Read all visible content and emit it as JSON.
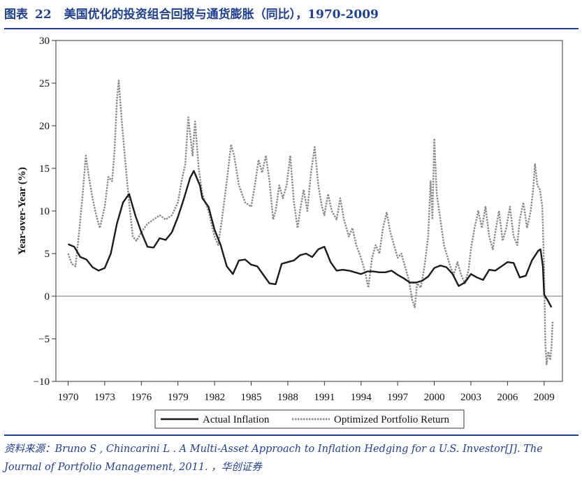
{
  "header": {
    "label": "图表",
    "number": "22",
    "title": "美国优化的投资组合回报与通货膨胀（同比），1970-2009"
  },
  "source": {
    "text": "资料来源：Bruno S , Chincarini L . A Multi-Asset Approach to Inflation Hedging for a U.S. Investor[J]. The Journal of Portfolio Management, 2011. ，华创证券"
  },
  "colors": {
    "title": "#1f3f8f",
    "inflation": "#1a1a1a",
    "portfolio": "#8a8a8a"
  },
  "chart_data": {
    "type": "line",
    "title": "",
    "xlabel": "",
    "ylabel": "Year-over-Year (%)",
    "xlim": [
      1969.0,
      2010.5
    ],
    "ylim": [
      -10,
      30
    ],
    "x_ticks": [
      1970,
      1973,
      1976,
      1979,
      1982,
      1985,
      1988,
      1991,
      1994,
      1997,
      2000,
      2003,
      2006,
      2009
    ],
    "x_tick_labels": [
      "1970",
      "1973",
      "1976",
      "1979",
      "1982",
      "1985",
      "1988",
      "1991",
      "1994",
      "1997",
      "2000",
      "2003",
      "2006",
      "2009"
    ],
    "y_ticks": [
      -10,
      -5,
      0,
      5,
      10,
      15,
      20,
      25,
      30
    ],
    "y_tick_labels": [
      "−10",
      "−5",
      "0",
      "5",
      "10",
      "15",
      "20",
      "25",
      "30"
    ],
    "grid": false,
    "zero_line": true,
    "legend_position": "bottom",
    "series": [
      {
        "name": "Actual Inflation",
        "style": "solid",
        "points": [
          [
            1970.0,
            6.1
          ],
          [
            1970.5,
            5.8
          ],
          [
            1971.0,
            4.6
          ],
          [
            1971.5,
            4.3
          ],
          [
            1972.0,
            3.4
          ],
          [
            1972.5,
            3.0
          ],
          [
            1973.0,
            3.3
          ],
          [
            1973.5,
            5.0
          ],
          [
            1974.0,
            8.5
          ],
          [
            1974.5,
            11.0
          ],
          [
            1975.0,
            12.0
          ],
          [
            1975.5,
            9.5
          ],
          [
            1976.0,
            7.5
          ],
          [
            1976.5,
            5.8
          ],
          [
            1977.0,
            5.7
          ],
          [
            1977.5,
            6.8
          ],
          [
            1978.0,
            6.6
          ],
          [
            1978.5,
            7.5
          ],
          [
            1979.0,
            9.3
          ],
          [
            1979.5,
            11.5
          ],
          [
            1980.0,
            13.9
          ],
          [
            1980.3,
            14.7
          ],
          [
            1980.8,
            13.0
          ],
          [
            1981.0,
            11.5
          ],
          [
            1981.5,
            10.5
          ],
          [
            1982.0,
            7.8
          ],
          [
            1982.5,
            6.0
          ],
          [
            1983.0,
            3.5
          ],
          [
            1983.5,
            2.6
          ],
          [
            1984.0,
            4.2
          ],
          [
            1984.5,
            4.3
          ],
          [
            1985.0,
            3.7
          ],
          [
            1985.5,
            3.5
          ],
          [
            1986.0,
            2.5
          ],
          [
            1986.5,
            1.5
          ],
          [
            1987.0,
            1.4
          ],
          [
            1987.5,
            3.8
          ],
          [
            1988.0,
            4.0
          ],
          [
            1988.5,
            4.2
          ],
          [
            1989.0,
            4.8
          ],
          [
            1989.5,
            5.0
          ],
          [
            1990.0,
            4.6
          ],
          [
            1990.5,
            5.5
          ],
          [
            1991.0,
            5.8
          ],
          [
            1991.5,
            4.0
          ],
          [
            1992.0,
            3.0
          ],
          [
            1992.5,
            3.1
          ],
          [
            1993.0,
            3.0
          ],
          [
            1993.5,
            2.8
          ],
          [
            1994.0,
            2.6
          ],
          [
            1994.5,
            2.9
          ],
          [
            1995.0,
            2.9
          ],
          [
            1995.5,
            2.8
          ],
          [
            1996.0,
            2.8
          ],
          [
            1996.5,
            3.0
          ],
          [
            1997.0,
            2.5
          ],
          [
            1997.5,
            2.1
          ],
          [
            1998.0,
            1.6
          ],
          [
            1998.5,
            1.6
          ],
          [
            1999.0,
            1.8
          ],
          [
            1999.5,
            2.3
          ],
          [
            2000.0,
            3.3
          ],
          [
            2000.5,
            3.6
          ],
          [
            2001.0,
            3.4
          ],
          [
            2001.5,
            2.6
          ],
          [
            2002.0,
            1.2
          ],
          [
            2002.5,
            1.6
          ],
          [
            2003.0,
            2.6
          ],
          [
            2003.5,
            2.2
          ],
          [
            2004.0,
            1.9
          ],
          [
            2004.5,
            3.1
          ],
          [
            2005.0,
            3.0
          ],
          [
            2005.5,
            3.5
          ],
          [
            2006.0,
            4.0
          ],
          [
            2006.5,
            3.9
          ],
          [
            2007.0,
            2.2
          ],
          [
            2007.5,
            2.4
          ],
          [
            2008.0,
            4.2
          ],
          [
            2008.5,
            5.3
          ],
          [
            2008.7,
            5.5
          ],
          [
            2008.9,
            3.5
          ],
          [
            2009.0,
            0.2
          ],
          [
            2009.3,
            -0.5
          ],
          [
            2009.6,
            -1.3
          ]
        ]
      },
      {
        "name": "Optimized Portfolio Return",
        "style": "dashed",
        "points": [
          [
            1970.0,
            5.0
          ],
          [
            1970.3,
            3.8
          ],
          [
            1970.6,
            3.5
          ],
          [
            1970.9,
            7.5
          ],
          [
            1971.2,
            12.0
          ],
          [
            1971.45,
            16.5
          ],
          [
            1971.7,
            14.0
          ],
          [
            1972.0,
            11.5
          ],
          [
            1972.3,
            9.5
          ],
          [
            1972.6,
            8.0
          ],
          [
            1973.0,
            10.5
          ],
          [
            1973.3,
            14.0
          ],
          [
            1973.6,
            13.5
          ],
          [
            1973.8,
            17.0
          ],
          [
            1974.0,
            23.0
          ],
          [
            1974.15,
            25.3
          ],
          [
            1974.4,
            20.5
          ],
          [
            1974.7,
            15.5
          ],
          [
            1975.0,
            11.0
          ],
          [
            1975.3,
            7.0
          ],
          [
            1975.6,
            6.5
          ],
          [
            1976.0,
            7.5
          ],
          [
            1976.5,
            8.5
          ],
          [
            1977.0,
            9.0
          ],
          [
            1977.5,
            9.5
          ],
          [
            1978.0,
            9.0
          ],
          [
            1978.5,
            9.5
          ],
          [
            1979.0,
            11.0
          ],
          [
            1979.3,
            13.5
          ],
          [
            1979.6,
            15.5
          ],
          [
            1979.85,
            21.0
          ],
          [
            1980.0,
            19.0
          ],
          [
            1980.2,
            16.5
          ],
          [
            1980.4,
            20.5
          ],
          [
            1980.7,
            15.0
          ],
          [
            1981.0,
            12.0
          ],
          [
            1981.5,
            10.0
          ],
          [
            1982.0,
            7.0
          ],
          [
            1982.3,
            6.0
          ],
          [
            1982.6,
            9.0
          ],
          [
            1983.0,
            13.5
          ],
          [
            1983.35,
            17.8
          ],
          [
            1983.6,
            16.5
          ],
          [
            1984.0,
            13.0
          ],
          [
            1984.5,
            11.0
          ],
          [
            1985.0,
            10.5
          ],
          [
            1985.3,
            13.0
          ],
          [
            1985.6,
            16.0
          ],
          [
            1985.9,
            14.5
          ],
          [
            1986.2,
            16.5
          ],
          [
            1986.5,
            13.5
          ],
          [
            1986.8,
            9.0
          ],
          [
            1987.0,
            10.0
          ],
          [
            1987.3,
            13.0
          ],
          [
            1987.6,
            11.5
          ],
          [
            1987.9,
            13.0
          ],
          [
            1988.2,
            16.5
          ],
          [
            1988.5,
            11.0
          ],
          [
            1988.8,
            8.0
          ],
          [
            1989.0,
            10.0
          ],
          [
            1989.3,
            12.5
          ],
          [
            1989.6,
            10.0
          ],
          [
            1989.9,
            14.5
          ],
          [
            1990.2,
            17.5
          ],
          [
            1990.5,
            13.0
          ],
          [
            1990.8,
            10.5
          ],
          [
            1991.0,
            9.5
          ],
          [
            1991.3,
            12.0
          ],
          [
            1991.6,
            10.0
          ],
          [
            1992.0,
            9.0
          ],
          [
            1992.3,
            11.5
          ],
          [
            1992.6,
            9.0
          ],
          [
            1993.0,
            7.0
          ],
          [
            1993.3,
            8.0
          ],
          [
            1993.6,
            6.0
          ],
          [
            1994.0,
            4.5
          ],
          [
            1994.3,
            3.0
          ],
          [
            1994.6,
            1.0
          ],
          [
            1994.9,
            4.5
          ],
          [
            1995.2,
            6.0
          ],
          [
            1995.5,
            5.0
          ],
          [
            1995.8,
            8.0
          ],
          [
            1996.1,
            9.8
          ],
          [
            1996.4,
            7.5
          ],
          [
            1996.7,
            6.0
          ],
          [
            1997.0,
            4.5
          ],
          [
            1997.3,
            5.0
          ],
          [
            1997.6,
            3.5
          ],
          [
            1997.9,
            2.0
          ],
          [
            1998.2,
            -0.5
          ],
          [
            1998.4,
            -1.3
          ],
          [
            1998.6,
            1.5
          ],
          [
            1998.9,
            1.0
          ],
          [
            1999.2,
            3.5
          ],
          [
            1999.5,
            7.0
          ],
          [
            1999.7,
            13.5
          ],
          [
            1999.85,
            9.0
          ],
          [
            2000.0,
            18.5
          ],
          [
            2000.2,
            12.0
          ],
          [
            2000.5,
            9.0
          ],
          [
            2000.8,
            6.0
          ],
          [
            2001.0,
            5.0
          ],
          [
            2001.3,
            3.5
          ],
          [
            2001.6,
            2.5
          ],
          [
            2001.9,
            4.0
          ],
          [
            2002.2,
            2.5
          ],
          [
            2002.5,
            1.5
          ],
          [
            2002.8,
            3.0
          ],
          [
            2003.0,
            5.5
          ],
          [
            2003.3,
            8.0
          ],
          [
            2003.6,
            10.0
          ],
          [
            2003.9,
            8.0
          ],
          [
            2004.2,
            10.5
          ],
          [
            2004.5,
            7.0
          ],
          [
            2004.8,
            5.5
          ],
          [
            2005.0,
            7.5
          ],
          [
            2005.3,
            10.0
          ],
          [
            2005.6,
            6.5
          ],
          [
            2005.9,
            8.0
          ],
          [
            2006.2,
            10.5
          ],
          [
            2006.5,
            7.0
          ],
          [
            2006.8,
            6.0
          ],
          [
            2007.0,
            9.0
          ],
          [
            2007.3,
            11.0
          ],
          [
            2007.6,
            8.0
          ],
          [
            2007.9,
            10.0
          ],
          [
            2008.1,
            12.5
          ],
          [
            2008.25,
            15.5
          ],
          [
            2008.45,
            13.0
          ],
          [
            2008.65,
            12.5
          ],
          [
            2008.85,
            10.5
          ],
          [
            2009.0,
            3.0
          ],
          [
            2009.1,
            -5.5
          ],
          [
            2009.2,
            -8.0
          ],
          [
            2009.35,
            -6.5
          ],
          [
            2009.5,
            -7.5
          ],
          [
            2009.6,
            -6.0
          ],
          [
            2009.7,
            -3.0
          ]
        ]
      }
    ]
  }
}
